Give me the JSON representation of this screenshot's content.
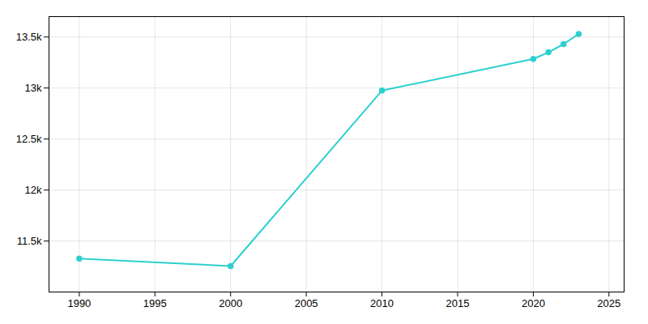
{
  "chart_data": {
    "type": "line",
    "x": [
      1990,
      2000,
      2010,
      2020,
      2021,
      2022,
      2023
    ],
    "values": [
      11327,
      11254,
      12975,
      13285,
      13350,
      13430,
      13530
    ],
    "color": "#2ecfcf",
    "marker": "circle",
    "xlim": [
      1988,
      2026
    ],
    "ylim": [
      11000,
      13700
    ],
    "xticks": [
      1990,
      1995,
      2000,
      2005,
      2010,
      2015,
      2020,
      2025
    ],
    "yticks": [
      {
        "value": 11500,
        "label": "11.5k"
      },
      {
        "value": 12000,
        "label": "12k"
      },
      {
        "value": 12500,
        "label": "12.5k"
      },
      {
        "value": 13000,
        "label": "13k"
      },
      {
        "value": 13500,
        "label": "13.5k"
      }
    ],
    "grid": true
  }
}
